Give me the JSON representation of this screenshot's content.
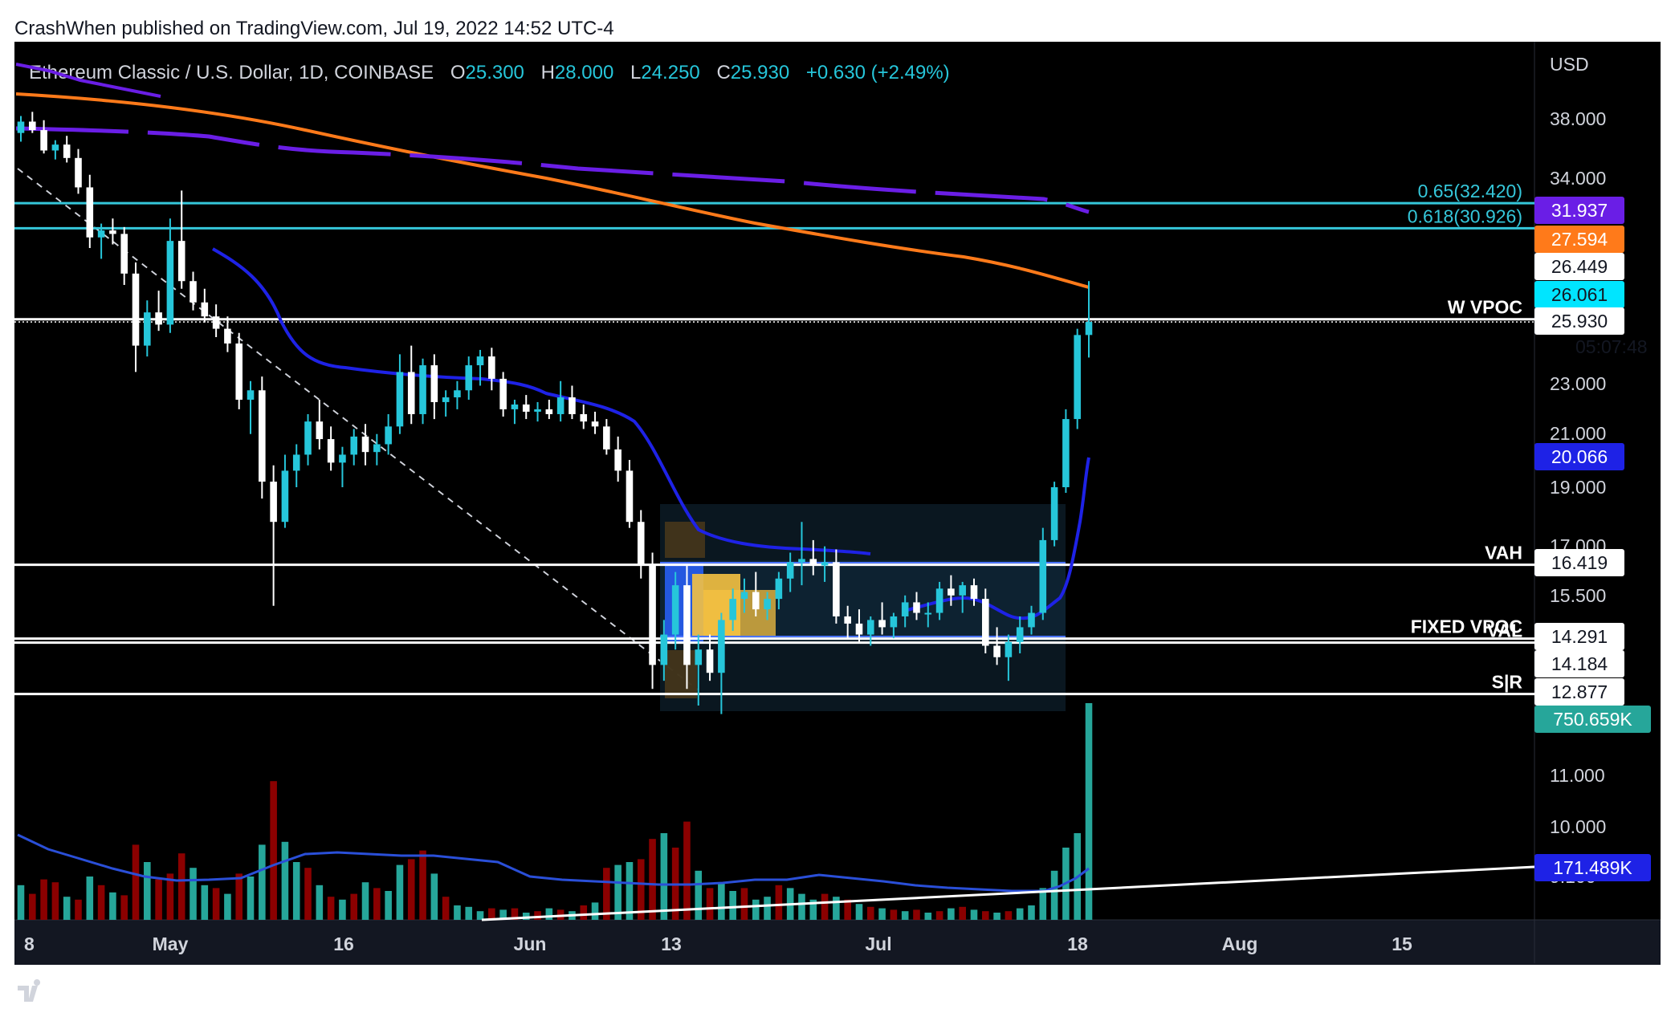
{
  "header": {
    "published": "CrashWhen published on TradingView.com, Jul 19, 2022 14:52 UTC-4"
  },
  "legend": {
    "symbol": "Ethereum Classic / U.S. Dollar, 1D, COINBASE",
    "o_label": "O",
    "o_value": "25.300",
    "h_label": "H",
    "h_value": "28.000",
    "l_label": "L",
    "l_value": "24.250",
    "c_label": "C",
    "c_value": "25.930",
    "change": "+0.630 (+2.49%)"
  },
  "footer": {
    "brand": "TradingView"
  },
  "colors": {
    "background": "#000000",
    "frame": "#131722",
    "text": "#d1d4dc",
    "up": "#26c6da",
    "down": "#ffffff",
    "vol_up": "#26a69a",
    "vol_down": "#8b0000",
    "ema_blue": "#1e22e6",
    "ma_purple": "#6a1ee6",
    "ma_orange": "#ff7a1a",
    "fib_cyan": "#35c7da"
  },
  "chart_data": {
    "type": "candlestick",
    "currency": "USD",
    "scale": "log",
    "x_ticks": [
      "8",
      "May",
      "16",
      "Jun",
      "13",
      "Jul",
      "18",
      "Aug",
      "15"
    ],
    "y_ticks": [
      "38.000",
      "34.000",
      "23.000",
      "21.000",
      "19.000",
      "17.000",
      "15.500",
      "11.000",
      "10.000",
      "9.100"
    ],
    "last_bar": {
      "open": 25.3,
      "high": 28.0,
      "low": 24.25,
      "close": 25.93,
      "change": 0.63,
      "change_pct": 2.49,
      "countdown": "05:07:48"
    },
    "horizontal_levels": [
      {
        "label": "0.65(32.420)",
        "value": 32.42,
        "color": "#35c7da"
      },
      {
        "label": "0.618(30.926)",
        "value": 30.926,
        "color": "#35c7da"
      },
      {
        "label": "W VPOC",
        "value": 26.061,
        "color": "#ffffff"
      },
      {
        "label": "VAH",
        "value": 16.419,
        "color": "#ffffff"
      },
      {
        "label": "FIXED VPOC",
        "value": 14.291,
        "color": "#ffffff"
      },
      {
        "label": "VAL",
        "value": 14.184,
        "color": "#ffffff"
      },
      {
        "label": "S|R",
        "value": 12.877,
        "color": "#ffffff"
      }
    ],
    "price_tags": [
      {
        "value": "31.937",
        "color": "#6a1ee6"
      },
      {
        "value": "27.594",
        "color": "#ff7a1a"
      },
      {
        "value": "26.449",
        "color": "#ffffff"
      },
      {
        "value": "26.061",
        "color": "#00e5ff"
      },
      {
        "value": "25.930",
        "color": "#ffffff"
      },
      {
        "value": "20.066",
        "color": "#1e22e6"
      },
      {
        "value": "16.419",
        "color": "#ffffff"
      },
      {
        "value": "14.291",
        "color": "#ffffff"
      },
      {
        "value": "14.184",
        "color": "#ffffff"
      },
      {
        "value": "12.877",
        "color": "#ffffff"
      },
      {
        "value": "750.659K",
        "color": "#26a69a"
      },
      {
        "value": "171.489K",
        "color": "#1e22e6"
      }
    ],
    "candles": [
      [
        37.0,
        38.2,
        36.4,
        37.8
      ],
      [
        37.8,
        38.5,
        37.0,
        37.2
      ],
      [
        37.2,
        37.9,
        35.6,
        35.8
      ],
      [
        35.8,
        36.5,
        35.2,
        36.2
      ],
      [
        36.2,
        36.8,
        35.0,
        35.3
      ],
      [
        35.3,
        35.9,
        33.0,
        33.4
      ],
      [
        33.4,
        34.2,
        29.8,
        30.4
      ],
      [
        30.4,
        31.2,
        29.2,
        30.8
      ],
      [
        30.8,
        31.5,
        30.0,
        30.6
      ],
      [
        30.6,
        31.0,
        27.8,
        28.4
      ],
      [
        28.4,
        29.0,
        23.6,
        24.8
      ],
      [
        24.8,
        27.0,
        24.3,
        26.4
      ],
      [
        26.4,
        27.5,
        25.5,
        25.8
      ],
      [
        25.8,
        31.5,
        25.4,
        30.2
      ],
      [
        30.2,
        33.2,
        27.6,
        28.0
      ],
      [
        28.0,
        28.5,
        26.5,
        26.9
      ],
      [
        26.9,
        27.6,
        25.9,
        26.2
      ],
      [
        26.2,
        26.8,
        25.2,
        25.6
      ],
      [
        25.6,
        26.2,
        24.5,
        24.9
      ],
      [
        24.9,
        25.4,
        22.0,
        22.4
      ],
      [
        22.4,
        23.2,
        21.0,
        22.8
      ],
      [
        22.8,
        23.4,
        18.6,
        19.2
      ],
      [
        19.2,
        19.8,
        15.2,
        17.8
      ],
      [
        17.8,
        20.2,
        17.6,
        19.6
      ],
      [
        19.6,
        20.6,
        19.0,
        20.2
      ],
      [
        20.2,
        21.8,
        19.8,
        21.5
      ],
      [
        21.5,
        22.4,
        20.4,
        20.8
      ],
      [
        20.8,
        21.3,
        19.6,
        19.9
      ],
      [
        19.9,
        20.5,
        19.0,
        20.2
      ],
      [
        20.2,
        21.2,
        19.8,
        20.9
      ],
      [
        20.9,
        21.4,
        19.8,
        20.3
      ],
      [
        20.3,
        21.0,
        19.8,
        20.6
      ],
      [
        20.6,
        21.8,
        20.2,
        21.3
      ],
      [
        21.3,
        24.4,
        21.0,
        23.6
      ],
      [
        23.6,
        24.8,
        21.4,
        21.8
      ],
      [
        21.8,
        24.2,
        21.4,
        23.9
      ],
      [
        23.9,
        24.4,
        21.6,
        22.3
      ],
      [
        22.3,
        22.8,
        21.7,
        22.5
      ],
      [
        22.5,
        23.2,
        22.0,
        22.8
      ],
      [
        22.8,
        24.3,
        22.4,
        23.9
      ],
      [
        23.9,
        24.6,
        23.0,
        24.3
      ],
      [
        24.3,
        24.7,
        22.8,
        23.3
      ],
      [
        23.3,
        23.6,
        21.7,
        22.0
      ],
      [
        22.0,
        22.4,
        21.4,
        22.2
      ],
      [
        22.2,
        22.6,
        21.6,
        21.9
      ],
      [
        21.9,
        22.3,
        21.5,
        22.0
      ],
      [
        22.0,
        22.4,
        21.6,
        21.8
      ],
      [
        21.8,
        23.2,
        21.5,
        22.5
      ],
      [
        22.5,
        23.0,
        21.6,
        21.8
      ],
      [
        21.8,
        22.2,
        21.2,
        21.5
      ],
      [
        21.5,
        21.9,
        21.0,
        21.3
      ],
      [
        21.3,
        21.6,
        20.2,
        20.4
      ],
      [
        20.4,
        20.9,
        19.2,
        19.6
      ],
      [
        19.6,
        20.0,
        17.6,
        17.8
      ],
      [
        17.8,
        18.2,
        16.0,
        16.4
      ],
      [
        16.4,
        16.8,
        13.0,
        13.6
      ],
      [
        13.6,
        14.8,
        13.2,
        14.4
      ],
      [
        14.4,
        16.2,
        14.0,
        15.8
      ],
      [
        15.8,
        16.4,
        13.0,
        13.6
      ],
      [
        13.6,
        14.4,
        12.6,
        14.0
      ],
      [
        14.0,
        14.4,
        13.2,
        13.4
      ],
      [
        13.4,
        15.0,
        12.4,
        14.8
      ],
      [
        14.8,
        15.7,
        14.5,
        15.4
      ],
      [
        15.4,
        16.0,
        15.0,
        15.6
      ],
      [
        15.6,
        16.2,
        14.9,
        15.1
      ],
      [
        15.1,
        15.6,
        14.8,
        15.4
      ],
      [
        15.4,
        16.2,
        15.1,
        16.0
      ],
      [
        16.0,
        16.8,
        15.6,
        16.5
      ],
      [
        16.5,
        17.8,
        15.8,
        16.6
      ],
      [
        16.6,
        17.2,
        16.1,
        16.4
      ],
      [
        16.4,
        17.0,
        15.9,
        16.5
      ],
      [
        16.5,
        16.9,
        14.7,
        14.9
      ],
      [
        14.9,
        15.2,
        14.3,
        14.7
      ],
      [
        14.7,
        15.1,
        14.2,
        14.4
      ],
      [
        14.4,
        14.9,
        14.1,
        14.8
      ],
      [
        14.8,
        15.3,
        14.4,
        14.6
      ],
      [
        14.6,
        15.0,
        14.3,
        14.9
      ],
      [
        14.9,
        15.5,
        14.6,
        15.3
      ],
      [
        15.3,
        15.6,
        14.8,
        15.0
      ],
      [
        15.0,
        15.3,
        14.6,
        15.0
      ],
      [
        15.0,
        15.9,
        14.8,
        15.7
      ],
      [
        15.7,
        16.1,
        15.2,
        15.5
      ],
      [
        15.5,
        15.9,
        15.0,
        15.8
      ],
      [
        15.8,
        16.0,
        15.2,
        15.4
      ],
      [
        15.4,
        15.7,
        13.9,
        14.1
      ],
      [
        14.1,
        14.6,
        13.6,
        13.8
      ],
      [
        13.8,
        14.4,
        13.2,
        14.2
      ],
      [
        14.2,
        14.9,
        13.9,
        14.6
      ],
      [
        14.6,
        15.2,
        14.4,
        15.0
      ],
      [
        15.0,
        17.6,
        14.8,
        17.2
      ],
      [
        17.2,
        19.2,
        17.0,
        19.0
      ],
      [
        19.0,
        22.0,
        18.8,
        21.6
      ],
      [
        21.6,
        25.6,
        21.2,
        25.3
      ],
      [
        25.3,
        28.0,
        24.25,
        25.93
      ]
    ],
    "volume": [
      [
        120,
        1
      ],
      [
        90,
        0
      ],
      [
        140,
        0
      ],
      [
        130,
        0
      ],
      [
        80,
        1
      ],
      [
        70,
        0
      ],
      [
        150,
        1
      ],
      [
        120,
        0
      ],
      [
        95,
        1
      ],
      [
        85,
        0
      ],
      [
        260,
        0
      ],
      [
        200,
        1
      ],
      [
        140,
        0
      ],
      [
        160,
        0
      ],
      [
        230,
        0
      ],
      [
        180,
        1
      ],
      [
        120,
        1
      ],
      [
        110,
        0
      ],
      [
        90,
        1
      ],
      [
        160,
        0
      ],
      [
        150,
        1
      ],
      [
        260,
        1
      ],
      [
        480,
        0
      ],
      [
        270,
        1
      ],
      [
        200,
        1
      ],
      [
        180,
        0
      ],
      [
        120,
        1
      ],
      [
        80,
        0
      ],
      [
        70,
        1
      ],
      [
        90,
        0
      ],
      [
        130,
        1
      ],
      [
        110,
        0
      ],
      [
        100,
        1
      ],
      [
        190,
        1
      ],
      [
        210,
        0
      ],
      [
        240,
        0
      ],
      [
        160,
        1
      ],
      [
        80,
        0
      ],
      [
        50,
        1
      ],
      [
        45,
        1
      ],
      [
        30,
        1
      ],
      [
        40,
        0
      ],
      [
        35,
        1
      ],
      [
        40,
        0
      ],
      [
        25,
        1
      ],
      [
        30,
        0
      ],
      [
        40,
        1
      ],
      [
        35,
        0
      ],
      [
        30,
        1
      ],
      [
        50,
        0
      ],
      [
        60,
        1
      ],
      [
        180,
        0
      ],
      [
        190,
        1
      ],
      [
        200,
        1
      ],
      [
        210,
        0
      ],
      [
        280,
        0
      ],
      [
        300,
        1
      ],
      [
        250,
        0
      ],
      [
        340,
        0
      ],
      [
        170,
        1
      ],
      [
        110,
        0
      ],
      [
        130,
        1
      ],
      [
        100,
        1
      ],
      [
        110,
        0
      ],
      [
        70,
        1
      ],
      [
        80,
        1
      ],
      [
        120,
        0
      ],
      [
        110,
        1
      ],
      [
        90,
        1
      ],
      [
        70,
        1
      ],
      [
        90,
        0
      ],
      [
        80,
        1
      ],
      [
        70,
        0
      ],
      [
        55,
        1
      ],
      [
        45,
        0
      ],
      [
        40,
        1
      ],
      [
        35,
        0
      ],
      [
        30,
        1
      ],
      [
        35,
        0
      ],
      [
        25,
        1
      ],
      [
        30,
        0
      ],
      [
        40,
        1
      ],
      [
        45,
        0
      ],
      [
        35,
        1
      ],
      [
        30,
        0
      ],
      [
        25,
        1
      ],
      [
        30,
        0
      ],
      [
        40,
        1
      ],
      [
        50,
        1
      ],
      [
        110,
        1
      ],
      [
        170,
        1
      ],
      [
        250,
        1
      ],
      [
        300,
        1
      ],
      [
        750,
        1
      ]
    ]
  }
}
